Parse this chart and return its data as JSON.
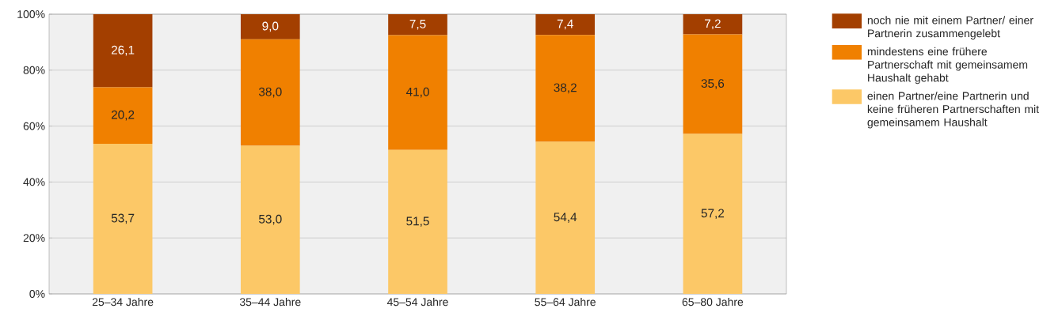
{
  "chart_data": {
    "type": "bar",
    "stacked": true,
    "categories": [
      "25–34 Jahre",
      "35–44 Jahre",
      "45–54 Jahre",
      "55–64 Jahre",
      "65–80 Jahre"
    ],
    "series": [
      {
        "name": "einen Partner/eine Partnerin und keine früheren Partnerschaften mit gemeinsamem Haushalt",
        "color": "#fcc867",
        "values": [
          53.7,
          53.0,
          51.5,
          54.4,
          57.2
        ],
        "value_labels": [
          "53,7",
          "53,0",
          "51,5",
          "54,4",
          "57,2"
        ]
      },
      {
        "name": "mindestens eine frühere Partnerschaft mit gemeinsamem Haushalt gehabt",
        "color": "#f08000",
        "values": [
          20.2,
          38.0,
          41.0,
          38.2,
          35.6
        ],
        "value_labels": [
          "20,2",
          "38,0",
          "41,0",
          "38,2",
          "35,6"
        ]
      },
      {
        "name": "noch nie mit einem Partner/ einer Partnerin zusammengelebt",
        "color": "#a33f00",
        "values": [
          26.1,
          9.0,
          7.5,
          7.4,
          7.2
        ],
        "value_labels": [
          "26,1",
          "9,0",
          "7,5",
          "7,4",
          "7,2"
        ]
      }
    ],
    "ylim": [
      0,
      100
    ],
    "yticks": [
      {
        "value": 0,
        "label": "0%"
      },
      {
        "value": 20,
        "label": "20%"
      },
      {
        "value": 40,
        "label": "40%"
      },
      {
        "value": 60,
        "label": "60%"
      },
      {
        "value": 80,
        "label": "80%"
      },
      {
        "value": 100,
        "label": "100%"
      }
    ],
    "grid": "y",
    "legend": "top right"
  }
}
